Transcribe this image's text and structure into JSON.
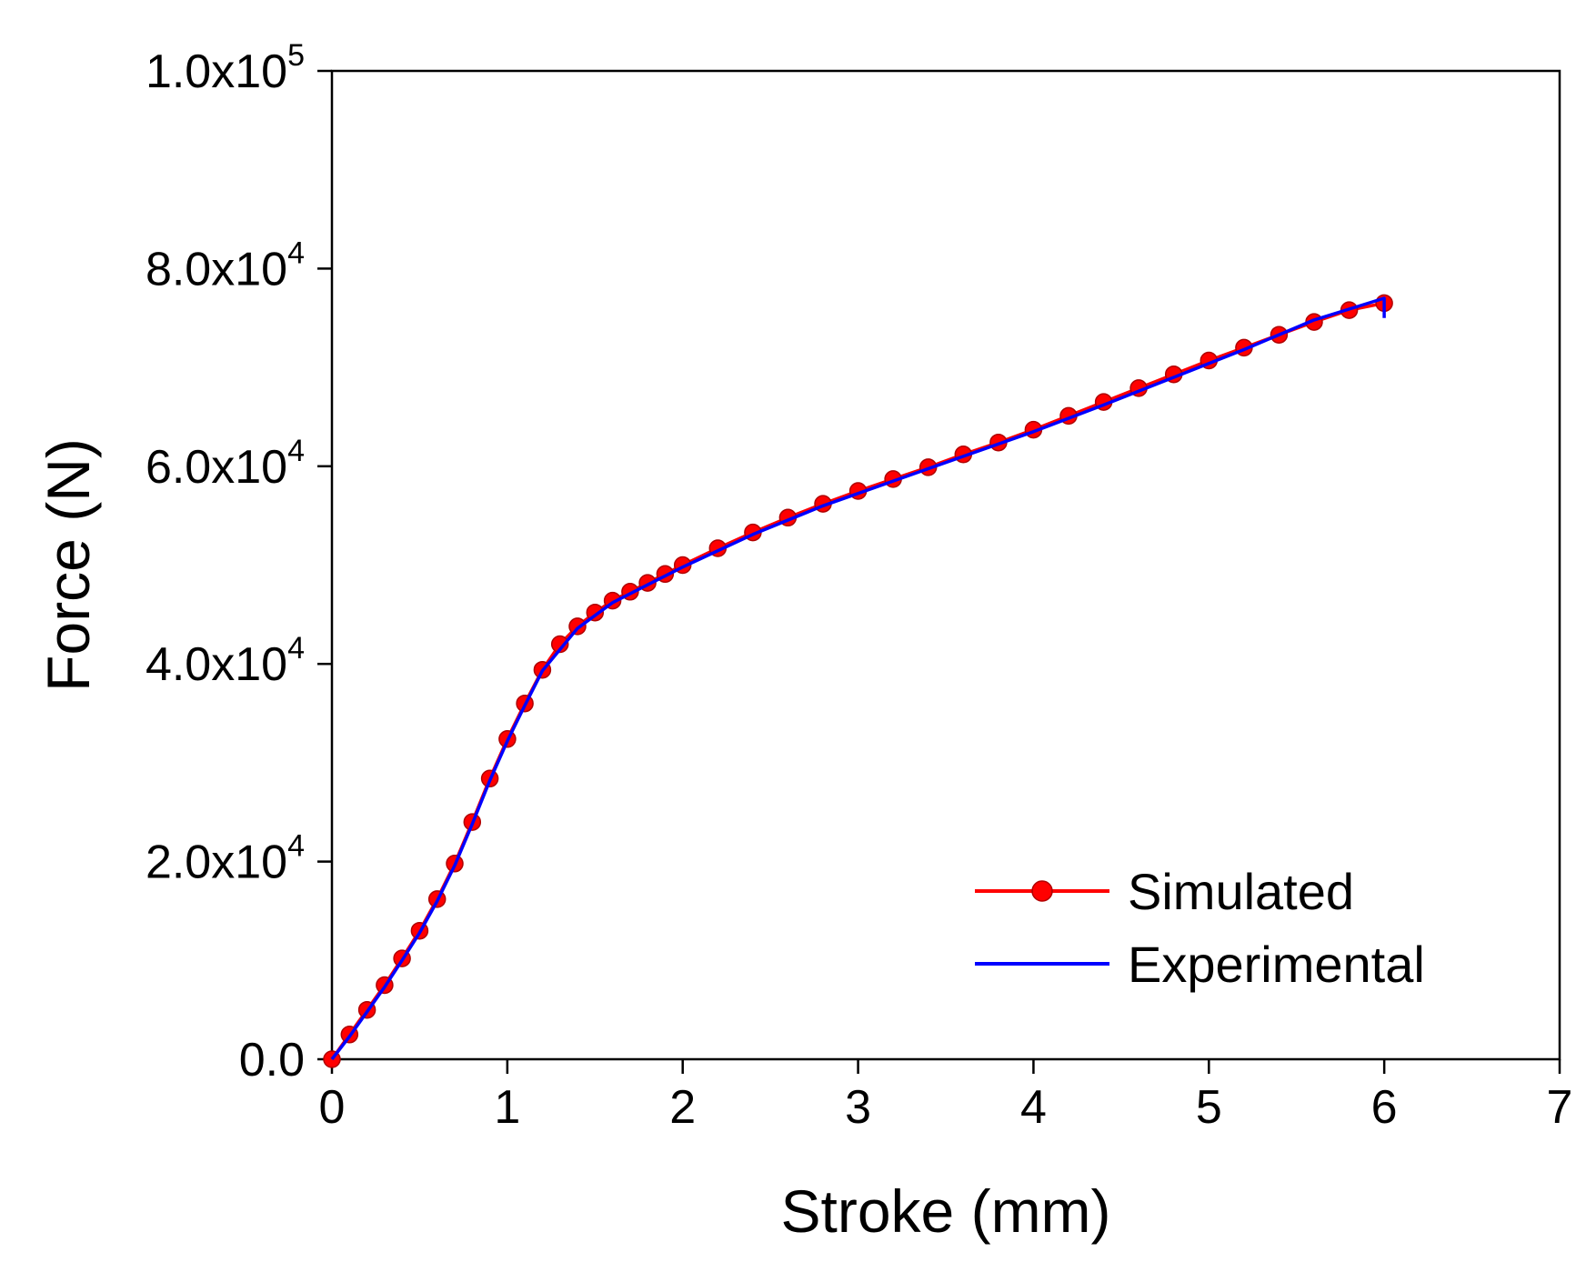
{
  "chart_data": {
    "type": "line",
    "title": "",
    "xlabel": "Stroke (mm)",
    "ylabel": "Force (N)",
    "xlim": [
      0,
      7
    ],
    "ylim": [
      0,
      100000
    ],
    "grid": false,
    "legend_position": "bottom-right",
    "x_ticks": [
      {
        "value": 0,
        "label": "0"
      },
      {
        "value": 1,
        "label": "1"
      },
      {
        "value": 2,
        "label": "2"
      },
      {
        "value": 3,
        "label": "3"
      },
      {
        "value": 4,
        "label": "4"
      },
      {
        "value": 5,
        "label": "5"
      },
      {
        "value": 6,
        "label": "6"
      },
      {
        "value": 7,
        "label": "7"
      }
    ],
    "y_ticks": [
      {
        "value": 0,
        "mantissa": "0.0",
        "exponent": ""
      },
      {
        "value": 20000,
        "mantissa": "2.0x10",
        "exponent": "4"
      },
      {
        "value": 40000,
        "mantissa": "4.0x10",
        "exponent": "4"
      },
      {
        "value": 60000,
        "mantissa": "6.0x10",
        "exponent": "4"
      },
      {
        "value": 80000,
        "mantissa": "8.0x10",
        "exponent": "4"
      },
      {
        "value": 100000,
        "mantissa": "1.0x10",
        "exponent": "5"
      }
    ],
    "series": [
      {
        "name": "Simulated",
        "color": "#ff0000",
        "marker": "circle",
        "x": [
          0,
          0.1,
          0.2,
          0.3,
          0.4,
          0.5,
          0.6,
          0.7,
          0.8,
          0.9,
          1.0,
          1.1,
          1.2,
          1.3,
          1.4,
          1.5,
          1.6,
          1.7,
          1.8,
          1.9,
          2.0,
          2.2,
          2.4,
          2.6,
          2.8,
          3.0,
          3.2,
          3.4,
          3.6,
          3.8,
          4.0,
          4.2,
          4.4,
          4.6,
          4.8,
          5.0,
          5.2,
          5.4,
          5.6,
          5.8,
          6.0
        ],
        "y": [
          0,
          2500,
          5000,
          7500,
          10200,
          13000,
          16200,
          19800,
          24000,
          28400,
          32400,
          36000,
          39400,
          42000,
          43800,
          45200,
          46400,
          47300,
          48200,
          49100,
          50000,
          51700,
          53300,
          54800,
          56200,
          57500,
          58700,
          59900,
          61200,
          62400,
          63700,
          65100,
          66500,
          67900,
          69300,
          70700,
          72000,
          73300,
          74600,
          75800,
          76500
        ]
      },
      {
        "name": "Experimental",
        "color": "#0000ff",
        "marker": "none",
        "x": [
          0,
          0.1,
          0.2,
          0.3,
          0.4,
          0.5,
          0.6,
          0.7,
          0.8,
          0.9,
          1.0,
          1.1,
          1.2,
          1.4,
          1.6,
          1.8,
          2.0,
          2.4,
          2.8,
          3.2,
          3.6,
          4.0,
          4.4,
          4.8,
          5.2,
          5.6,
          6.0,
          6.0
        ],
        "y": [
          0,
          2300,
          4800,
          7300,
          10000,
          12800,
          16000,
          19600,
          23800,
          28200,
          32200,
          35800,
          39300,
          43600,
          46200,
          48000,
          49800,
          53100,
          56000,
          58500,
          61000,
          63500,
          66200,
          69000,
          71800,
          74800,
          77000,
          75000
        ]
      }
    ]
  }
}
